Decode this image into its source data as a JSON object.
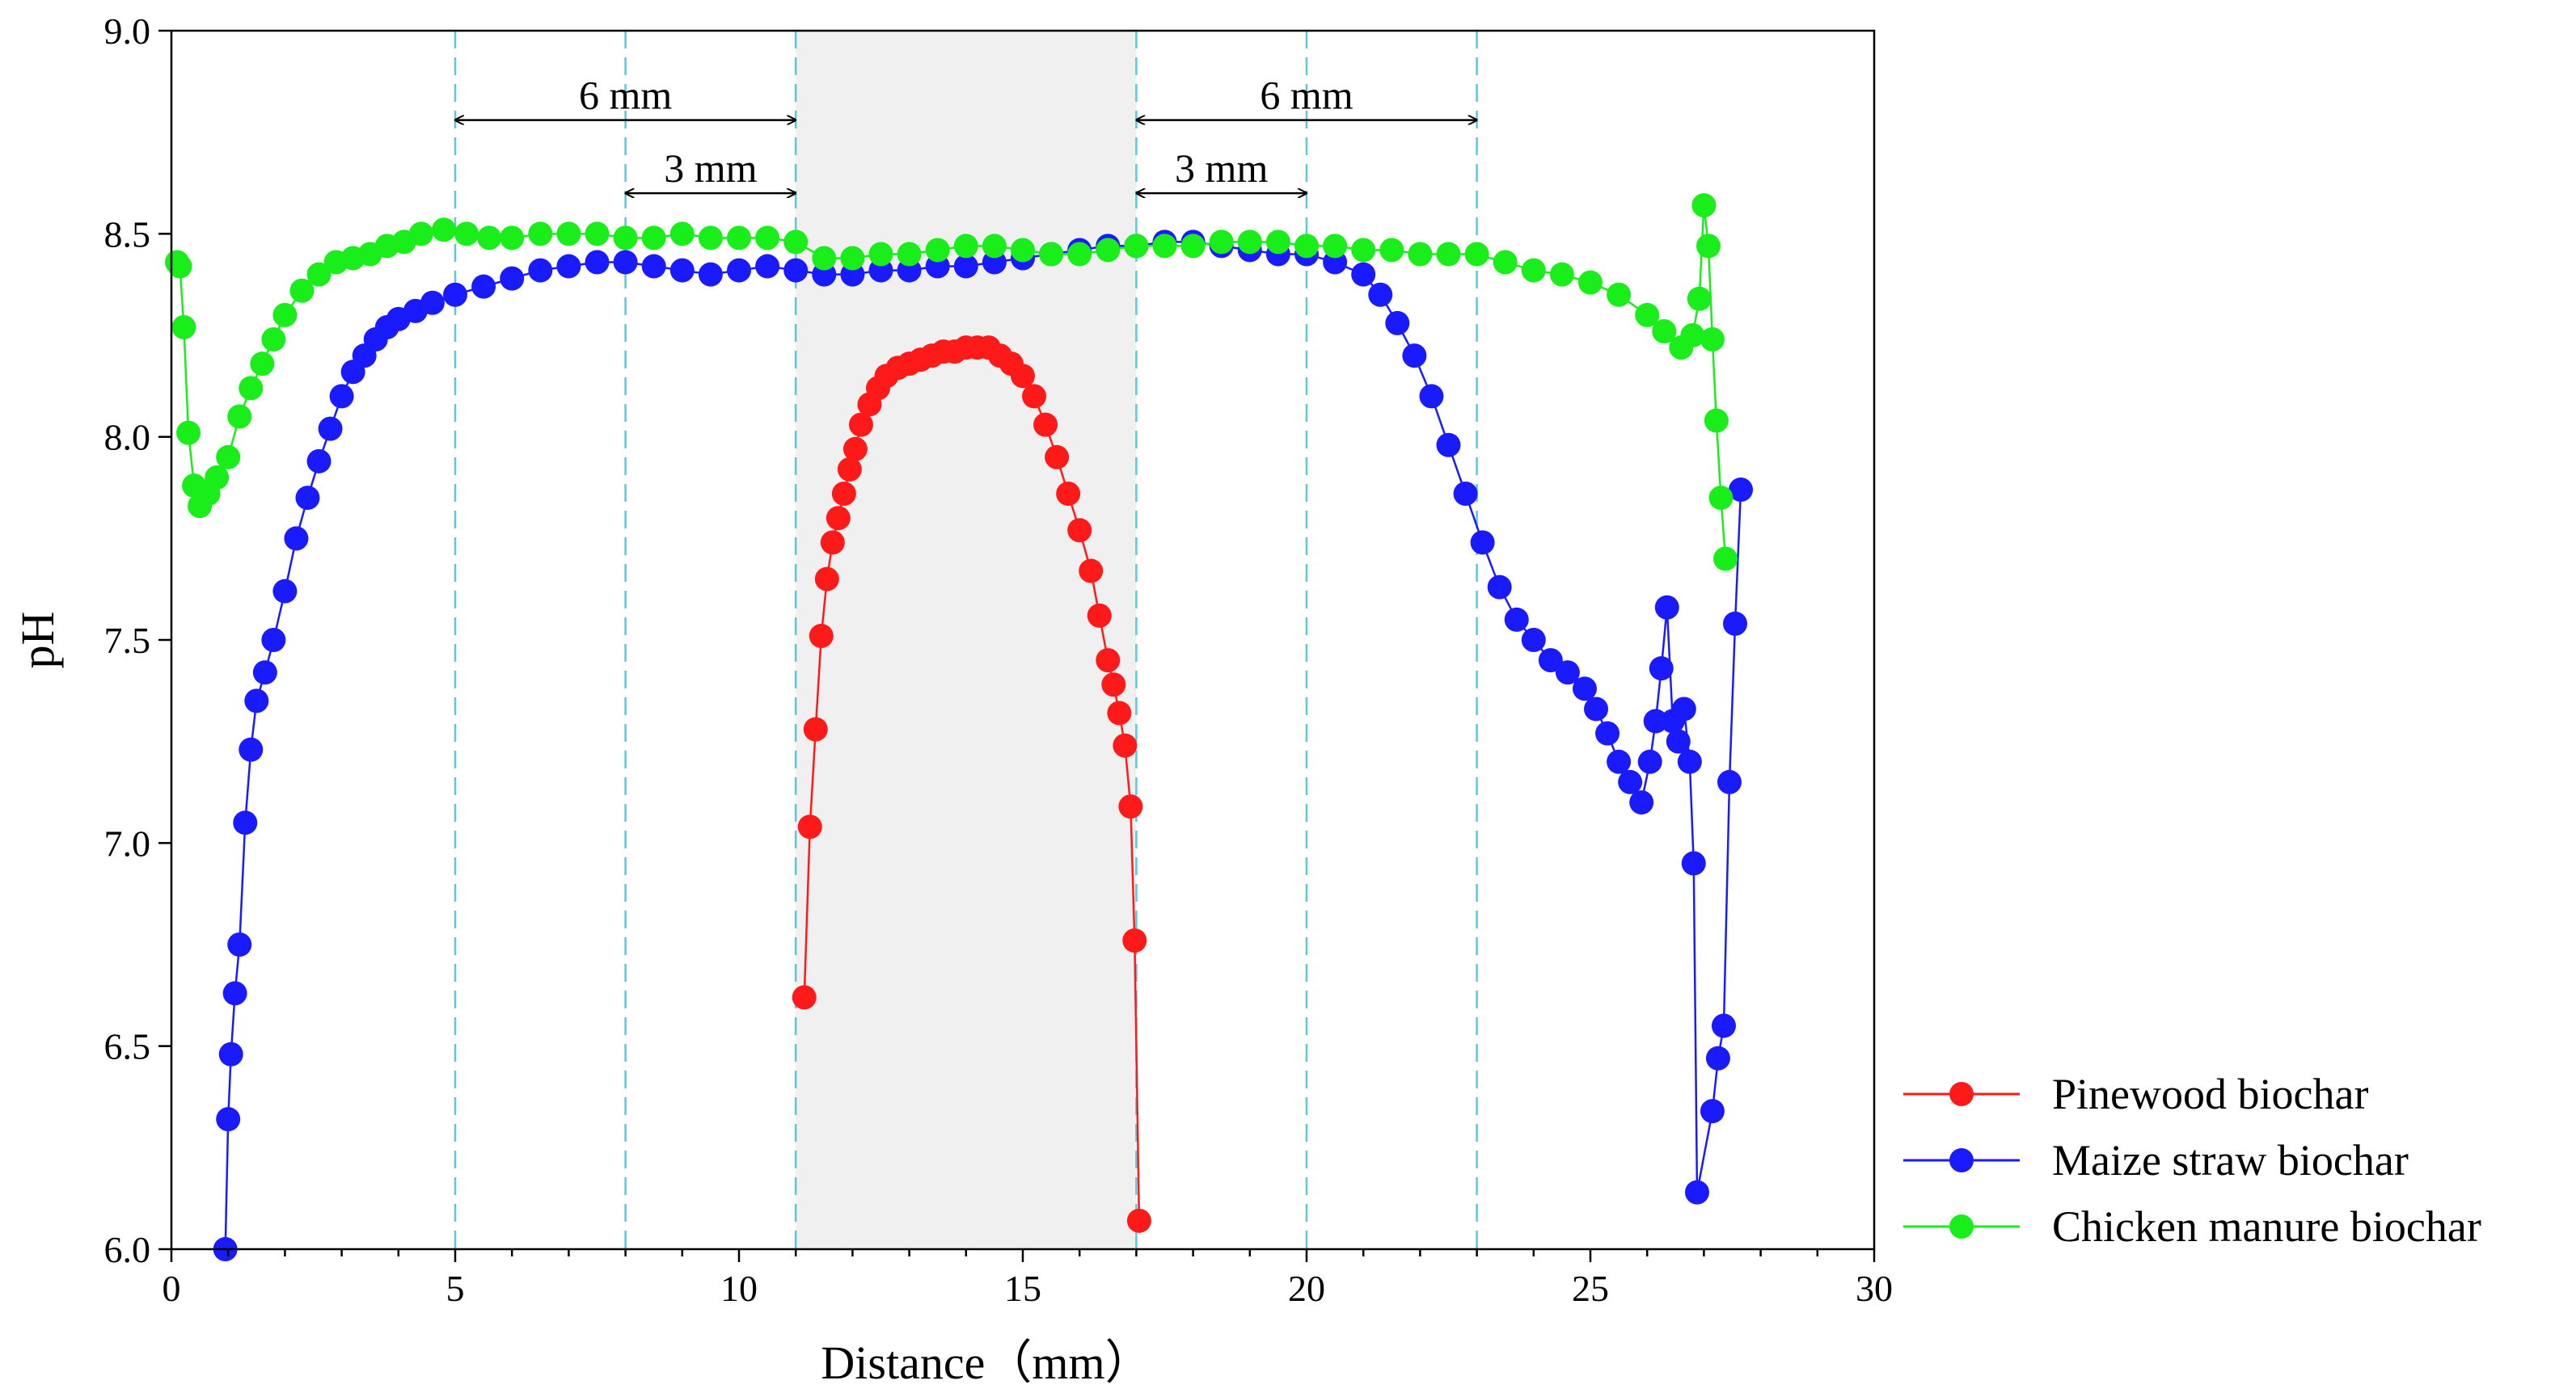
{
  "chart_data": {
    "type": "line",
    "title": "",
    "xlabel": "Distance（mm）",
    "ylabel": "pH",
    "xlim": [
      0,
      30
    ],
    "ylim": [
      6.0,
      9.0
    ],
    "xticks": [
      0,
      5,
      10,
      15,
      20,
      25,
      30
    ],
    "xtick_labels": [
      "0",
      "5",
      "10",
      "15",
      "20",
      "25",
      "30"
    ],
    "yticks": [
      6.0,
      6.5,
      7.0,
      7.5,
      8.0,
      8.5,
      9.0
    ],
    "ytick_labels": [
      "6.0",
      "6.5",
      "7.0",
      "7.5",
      "8.0",
      "8.5",
      "9.0"
    ],
    "grid": false,
    "legend_position": "outside-bottom-right",
    "shaded_region": {
      "x": [
        11,
        17
      ],
      "color": "#f0f0f0"
    },
    "reference_lines_x": [
      5,
      8,
      11,
      17,
      20,
      23
    ],
    "reference_line_color": "#5bc8dc",
    "annotations": [
      {
        "label": "6 mm",
        "from": 5,
        "to": 11,
        "y": 8.78
      },
      {
        "label": "3 mm",
        "from": 8,
        "to": 11,
        "y": 8.6
      },
      {
        "label": "6 mm",
        "from": 17,
        "to": 23,
        "y": 8.78
      },
      {
        "label": "3 mm",
        "from": 17,
        "to": 20,
        "y": 8.6
      }
    ],
    "series": [
      {
        "name": "Pinewood biochar",
        "color": "#ff1a1a",
        "x": [
          11.15,
          11.25,
          11.35,
          11.45,
          11.55,
          11.65,
          11.75,
          11.85,
          11.95,
          12.05,
          12.15,
          12.3,
          12.45,
          12.6,
          12.8,
          13.0,
          13.2,
          13.4,
          13.6,
          13.8,
          14.0,
          14.2,
          14.4,
          14.6,
          14.8,
          15.0,
          15.2,
          15.4,
          15.6,
          15.8,
          16.0,
          16.2,
          16.35,
          16.5,
          16.6,
          16.7,
          16.8,
          16.9,
          16.97,
          17.05
        ],
        "y": [
          6.62,
          7.04,
          7.28,
          7.51,
          7.65,
          7.74,
          7.8,
          7.86,
          7.92,
          7.97,
          8.03,
          8.08,
          8.12,
          8.15,
          8.17,
          8.18,
          8.19,
          8.2,
          8.21,
          8.21,
          8.22,
          8.22,
          8.22,
          8.2,
          8.18,
          8.15,
          8.1,
          8.03,
          7.95,
          7.86,
          7.77,
          7.67,
          7.56,
          7.45,
          7.39,
          7.32,
          7.24,
          7.09,
          6.76,
          6.07
        ]
      },
      {
        "name": "Maize straw biochar",
        "color": "#1a1aff",
        "x": [
          0.95,
          1.0,
          1.05,
          1.12,
          1.2,
          1.3,
          1.4,
          1.5,
          1.65,
          1.8,
          2.0,
          2.2,
          2.4,
          2.6,
          2.8,
          3.0,
          3.2,
          3.4,
          3.6,
          3.8,
          4.0,
          4.3,
          4.6,
          5.0,
          5.5,
          6.0,
          6.5,
          7.0,
          7.5,
          8.0,
          8.5,
          9.0,
          9.5,
          10.0,
          10.5,
          11.0,
          11.5,
          12.0,
          12.5,
          13.0,
          13.5,
          14.0,
          14.5,
          15.0,
          15.5,
          16.0,
          16.5,
          17.0,
          17.5,
          18.0,
          18.5,
          19.0,
          19.5,
          20.0,
          20.5,
          21.0,
          21.3,
          21.6,
          21.9,
          22.2,
          22.5,
          22.8,
          23.1,
          23.4,
          23.7,
          24.0,
          24.3,
          24.6,
          24.9,
          25.1,
          25.3,
          25.5,
          25.7,
          25.9,
          26.05,
          26.15,
          26.25,
          26.35,
          26.45,
          26.55,
          26.65,
          26.75,
          26.82,
          26.88,
          27.15,
          27.25,
          27.35,
          27.45,
          27.55,
          27.65
        ],
        "y": [
          6.0,
          6.32,
          6.48,
          6.63,
          6.75,
          7.05,
          7.23,
          7.35,
          7.42,
          7.5,
          7.62,
          7.75,
          7.85,
          7.94,
          8.02,
          8.1,
          8.16,
          8.2,
          8.24,
          8.27,
          8.29,
          8.31,
          8.33,
          8.35,
          8.37,
          8.39,
          8.41,
          8.42,
          8.43,
          8.43,
          8.42,
          8.41,
          8.4,
          8.41,
          8.42,
          8.41,
          8.4,
          8.4,
          8.41,
          8.41,
          8.42,
          8.42,
          8.43,
          8.44,
          8.45,
          8.46,
          8.47,
          8.47,
          8.48,
          8.48,
          8.47,
          8.46,
          8.45,
          8.45,
          8.43,
          8.4,
          8.35,
          8.28,
          8.2,
          8.1,
          7.98,
          7.86,
          7.74,
          7.63,
          7.55,
          7.5,
          7.45,
          7.42,
          7.38,
          7.33,
          7.27,
          7.2,
          7.15,
          7.1,
          7.2,
          7.3,
          7.43,
          7.58,
          7.3,
          7.25,
          7.33,
          7.2,
          6.95,
          6.14,
          6.34,
          6.47,
          6.55,
          7.15,
          7.54,
          7.87
        ]
      },
      {
        "name": "Chicken manure biochar",
        "color": "#1aee1a",
        "x": [
          0.1,
          0.15,
          0.22,
          0.3,
          0.4,
          0.5,
          0.65,
          0.8,
          1.0,
          1.2,
          1.4,
          1.6,
          1.8,
          2.0,
          2.3,
          2.6,
          2.9,
          3.2,
          3.5,
          3.8,
          4.1,
          4.4,
          4.8,
          5.2,
          5.6,
          6.0,
          6.5,
          7.0,
          7.5,
          8.0,
          8.5,
          9.0,
          9.5,
          10.0,
          10.5,
          11.0,
          11.5,
          12.0,
          12.5,
          13.0,
          13.5,
          14.0,
          14.5,
          15.0,
          15.5,
          16.0,
          16.5,
          17.0,
          17.5,
          18.0,
          18.5,
          19.0,
          19.5,
          20.0,
          20.5,
          21.0,
          21.5,
          22.0,
          22.5,
          23.0,
          23.5,
          24.0,
          24.5,
          25.0,
          25.5,
          26.0,
          26.3,
          26.6,
          26.8,
          26.92,
          27.0,
          27.08,
          27.15,
          27.22,
          27.3,
          27.38
        ],
        "y": [
          8.43,
          8.42,
          8.27,
          8.01,
          7.88,
          7.83,
          7.86,
          7.9,
          7.95,
          8.05,
          8.12,
          8.18,
          8.24,
          8.3,
          8.36,
          8.4,
          8.43,
          8.44,
          8.45,
          8.47,
          8.48,
          8.5,
          8.51,
          8.5,
          8.49,
          8.49,
          8.5,
          8.5,
          8.5,
          8.49,
          8.49,
          8.5,
          8.49,
          8.49,
          8.49,
          8.48,
          8.44,
          8.44,
          8.45,
          8.45,
          8.46,
          8.47,
          8.47,
          8.46,
          8.45,
          8.45,
          8.46,
          8.47,
          8.47,
          8.47,
          8.48,
          8.48,
          8.48,
          8.47,
          8.47,
          8.46,
          8.46,
          8.45,
          8.45,
          8.45,
          8.43,
          8.41,
          8.4,
          8.38,
          8.35,
          8.3,
          8.26,
          8.22,
          8.25,
          8.34,
          8.57,
          8.47,
          8.24,
          8.04,
          7.85,
          7.7
        ]
      }
    ]
  }
}
